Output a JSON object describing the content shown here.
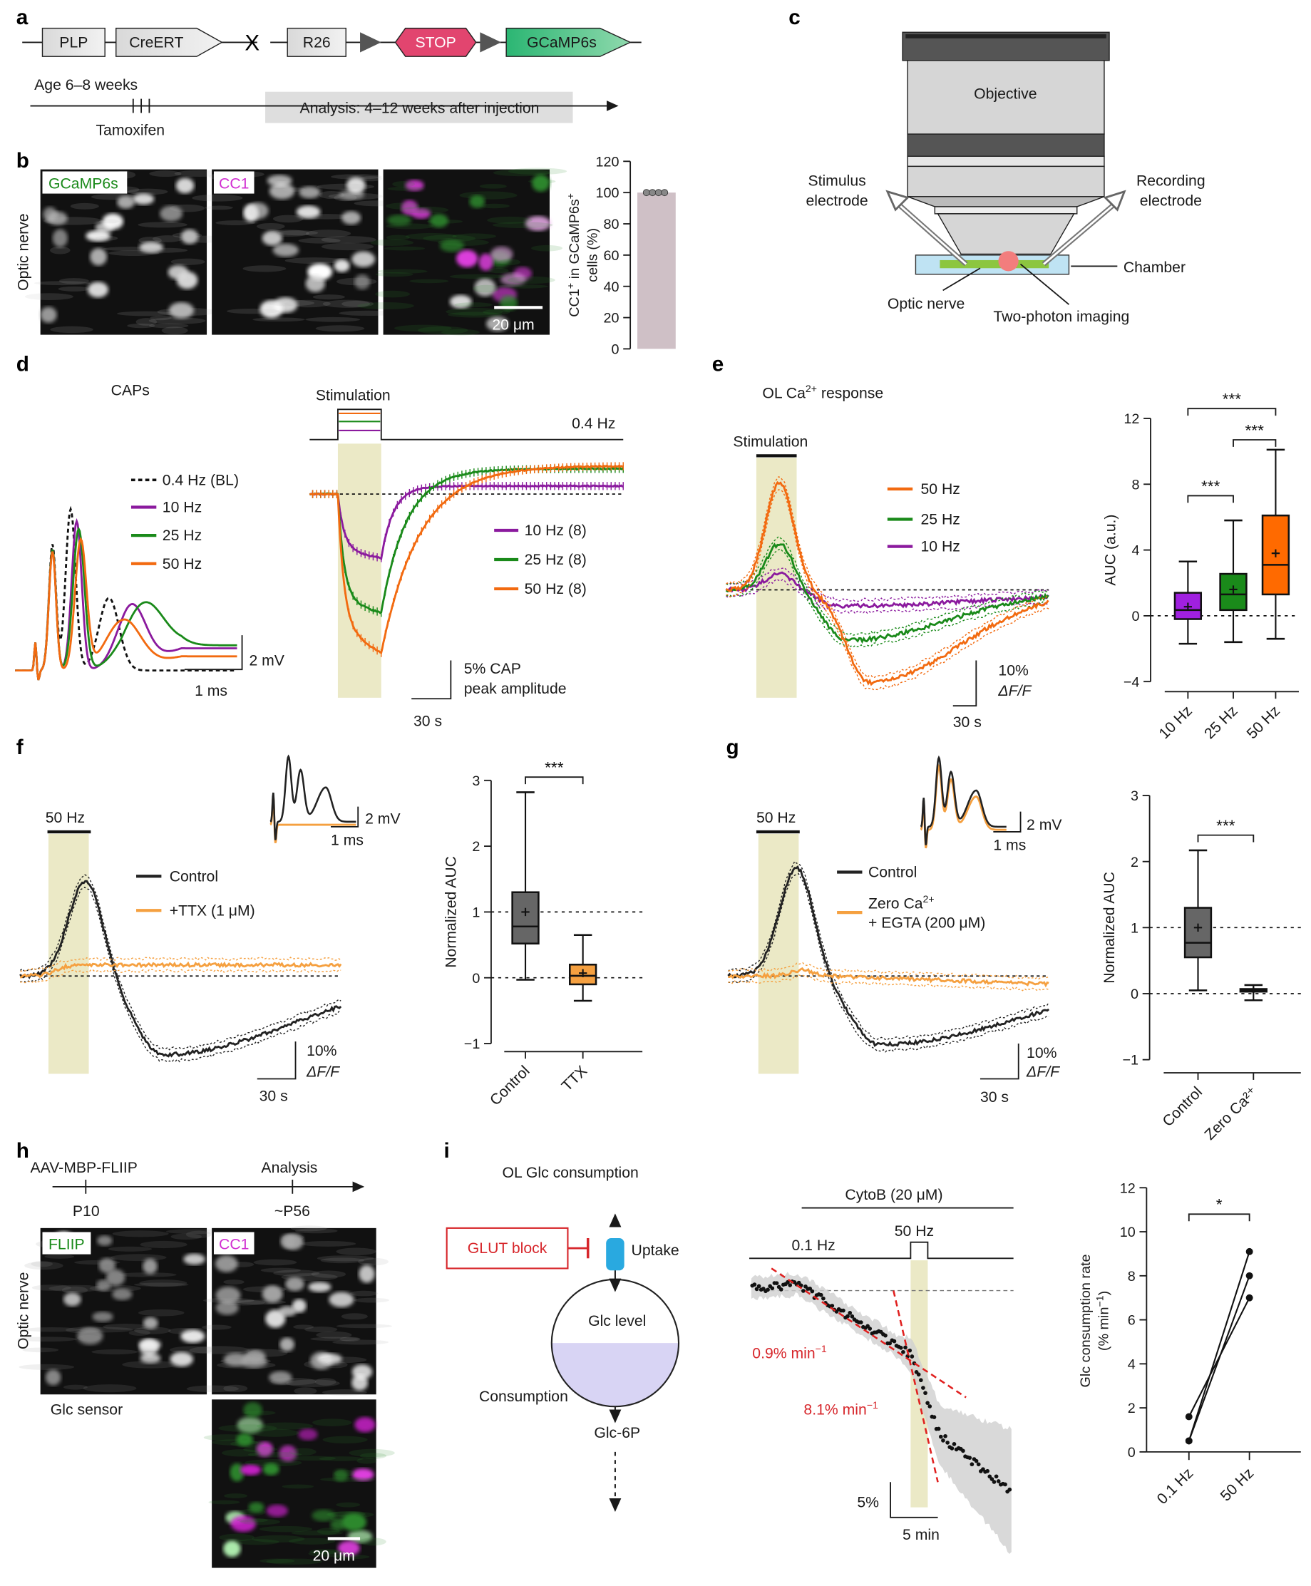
{
  "panel_labels": {
    "a": "a",
    "b": "b",
    "c": "c",
    "d": "d",
    "e": "e",
    "f": "f",
    "g": "g",
    "h": "h",
    "i": "i"
  },
  "a": {
    "plp": "PLP",
    "creert": "CreERT",
    "cross": "X",
    "r26": "R26",
    "stop": "STOP",
    "gcamp": "GCaMP6s",
    "age": "Age 6–8 weeks",
    "tamoxifen": "Tamoxifen",
    "analysis": "Analysis: 4–12 weeks after injection"
  },
  "b": {
    "side_label": "Optic nerve",
    "img1": "GCaMP6s",
    "img2": "CC1",
    "scale": "20 μm"
  },
  "c": {
    "objective": "Objective",
    "stim1": "Stimulus",
    "stim2": "electrode",
    "rec1": "Recording",
    "rec2": "electrode",
    "chamber": "Chamber",
    "optic": "Optic nerve",
    "twophoton": "Two-photon imaging"
  },
  "d": {
    "caps": "CAPs",
    "legend": [
      "0.4 Hz (BL)",
      "10 Hz",
      "25 Hz",
      "50 Hz"
    ],
    "scale_v": "2 mV",
    "scale_h": "1 ms",
    "stimulation": "Stimulation",
    "rate": "0.4 Hz",
    "legend2": [
      "10 Hz (8)",
      "25 Hz (8)",
      "50 Hz (8)"
    ],
    "scale2_v1": "5% CAP",
    "scale2_v2": "peak amplitude",
    "scale2_h": "30 s"
  },
  "e": {
    "title_pre": "OL Ca",
    "title_sup": "2+",
    "title_post": " response",
    "stimulation": "Stimulation",
    "legend": [
      "50 Hz",
      "25 Hz",
      "10 Hz"
    ],
    "scale_v1": "10%",
    "scale_v2": "ΔF/F",
    "scale_h": "30 s"
  },
  "f": {
    "stim": "50 Hz",
    "legend": [
      "Control",
      "+TTX (1 μM)"
    ],
    "inset_v": "2 mV",
    "inset_h": "1 ms",
    "scale_v1": "10%",
    "scale_v2": "ΔF/F",
    "scale_h": "30 s"
  },
  "g": {
    "stim": "50 Hz",
    "legend_control": "Control",
    "legend_zero_pre": "Zero Ca",
    "legend_zero_sup": "2+",
    "legend_zero_2": "+ EGTA (200 μM)",
    "inset_v": "2 mV",
    "inset_h": "1 ms",
    "scale_v1": "10%",
    "scale_v2": "ΔF/F",
    "scale_h": "30 s"
  },
  "h": {
    "virus": "AAV-MBP-FLIIP",
    "analysis": "Analysis",
    "p10": "P10",
    "p56": "~P56",
    "side_label": "Optic nerve",
    "img1": "FLIIP",
    "img2": "CC1",
    "sensor": "Glc sensor",
    "scale": "20 μm"
  },
  "i": {
    "title": "OL Glc consumption",
    "glut": "GLUT block",
    "uptake": "Uptake",
    "glc_level": "Glc level",
    "consumption": "Consumption",
    "g6p": "Glc-6P",
    "cytob": "CytoB (20 μM)",
    "rate1": "0.1 Hz",
    "rate2": "50 Hz",
    "slope1": "0.9% min",
    "slope2": "8.1% min",
    "slope_sup": "−1",
    "scale_v": "5%",
    "scale_h": "5 min"
  },
  "colors": {
    "purple": "#a020e0",
    "green": "#1a8a1a",
    "orange": "#f26a10",
    "ttx_orange": "#f5a040",
    "control_gray": "#666666",
    "stim_shade": "#ebe9c6",
    "gcamp_green": "#2bb673",
    "stop_pink": "#e2456f",
    "glut_red": "#d7262b",
    "transporter_blue": "#29a9e0"
  },
  "chart_data": [
    {
      "panel": "b",
      "type": "bar",
      "ylabel_parts": [
        "CC1",
        "+",
        " in GCaMP6s",
        "+"
      ],
      "ylabel_line2": "cells (%)",
      "ylim": [
        0,
        120
      ],
      "yticks": [
        0,
        20,
        40,
        60,
        80,
        100,
        120
      ],
      "values": [
        100
      ],
      "points": [
        100,
        100,
        100,
        100
      ],
      "color": "#cfc0c6"
    },
    {
      "panel": "e",
      "type": "box",
      "ylabel": "AUC (a.u.)",
      "ylim": [
        -4,
        12
      ],
      "yticks": [
        -4,
        0,
        4,
        8,
        12
      ],
      "reference_line": 0,
      "categories": [
        "10 Hz",
        "25 Hz",
        "50 Hz"
      ],
      "boxes": [
        {
          "label": "10 Hz",
          "min": -1.7,
          "q1": -0.2,
          "median": 0.35,
          "q3": 1.4,
          "max": 3.3,
          "mean": 0.55,
          "color": "#a020e0"
        },
        {
          "label": "25 Hz",
          "min": -1.6,
          "q1": 0.35,
          "median": 1.3,
          "q3": 2.55,
          "max": 5.8,
          "mean": 1.6,
          "color": "#1a8a1a"
        },
        {
          "label": "50 Hz",
          "min": -1.4,
          "q1": 1.3,
          "median": 3.1,
          "q3": 6.1,
          "max": 10.1,
          "mean": 3.8,
          "color": "#ff6a00"
        }
      ],
      "significance": [
        {
          "pair": [
            0,
            1
          ],
          "label": "***",
          "y": 7.3
        },
        {
          "pair": [
            1,
            2
          ],
          "label": "***",
          "y": 10.7
        },
        {
          "pair": [
            0,
            2
          ],
          "label": "***",
          "y": 12.6
        }
      ]
    },
    {
      "panel": "f",
      "type": "box",
      "ylabel": "Normalized AUC",
      "ylim": [
        -1,
        3
      ],
      "yticks": [
        -1,
        0,
        1,
        2,
        3
      ],
      "reference_lines": [
        0,
        1
      ],
      "categories": [
        "Control",
        "TTX"
      ],
      "boxes": [
        {
          "label": "Control",
          "min": -0.03,
          "q1": 0.52,
          "median": 0.78,
          "q3": 1.3,
          "max": 2.82,
          "mean": 1.0,
          "color": "#666666"
        },
        {
          "label": "TTX",
          "min": -0.35,
          "q1": -0.1,
          "median": 0.03,
          "q3": 0.2,
          "max": 0.65,
          "mean": 0.07,
          "color": "#f5a040"
        }
      ],
      "significance": [
        {
          "pair": [
            0,
            1
          ],
          "label": "***",
          "y": 3.05
        }
      ]
    },
    {
      "panel": "g",
      "type": "box",
      "ylabel": "Normalized AUC",
      "ylim": [
        -1,
        3
      ],
      "yticks": [
        -1,
        0,
        1,
        2,
        3
      ],
      "reference_lines": [
        0,
        1
      ],
      "categories": [
        "Control",
        "Zero Ca2+"
      ],
      "boxes": [
        {
          "label": "Control",
          "min": 0.05,
          "q1": 0.55,
          "median": 0.77,
          "q3": 1.3,
          "max": 2.17,
          "mean": 1.0,
          "color": "#666666"
        },
        {
          "label": "Zero Ca2+",
          "min": -0.1,
          "q1": 0.03,
          "median": 0.05,
          "q3": 0.07,
          "max": 0.13,
          "mean": 0.05,
          "color": "#f5a040"
        }
      ],
      "significance": [
        {
          "pair": [
            0,
            1
          ],
          "label": "***",
          "y": 2.4
        }
      ]
    },
    {
      "panel": "i",
      "type": "scatter",
      "ylabel": "Glc consumption rate",
      "ylabel_line2": "(% min",
      "ylabel_sup": "−1",
      "ylabel_close": ")",
      "ylim": [
        0,
        12
      ],
      "yticks": [
        0,
        2,
        4,
        6,
        8,
        10,
        12
      ],
      "categories": [
        "0.1 Hz",
        "50 Hz"
      ],
      "pairs": [
        [
          1.6,
          7.0
        ],
        [
          0.5,
          9.1
        ],
        [
          0.5,
          8.0
        ]
      ],
      "significance": [
        {
          "pair": [
            0,
            1
          ],
          "label": "*",
          "y": 10.8
        }
      ]
    }
  ]
}
